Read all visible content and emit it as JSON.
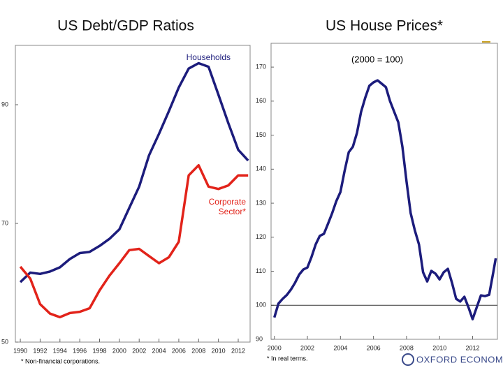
{
  "chart_data": [
    {
      "type": "line",
      "title": "US Debt/GDP Ratios",
      "x": [
        1990,
        1991,
        1992,
        1993,
        1994,
        1995,
        1996,
        1997,
        1998,
        1999,
        2000,
        2001,
        2002,
        2003,
        2004,
        2005,
        2006,
        2007,
        2008,
        2009,
        2010,
        2011,
        2012,
        2013
      ],
      "series": [
        {
          "name": "Households",
          "color": "#1c1c7c",
          "values": [
            60.1,
            61.7,
            61.5,
            61.9,
            62.6,
            64,
            65,
            65.2,
            66.2,
            67.4,
            69,
            72.6,
            76.2,
            81.5,
            85.1,
            88.9,
            92.9,
            96.1,
            97,
            96.4,
            91.7,
            86.9,
            82.4,
            80.6
          ]
        },
        {
          "name": "Corporate Sector*",
          "color": "#e2231a",
          "values": [
            62.7,
            60.7,
            56.4,
            54.8,
            54.2,
            54.9,
            55.1,
            55.7,
            58.7,
            61.2,
            63.3,
            65.5,
            65.7,
            64.5,
            63.3,
            64.3,
            66.9,
            78.1,
            79.8,
            76.2,
            75.8,
            76.4,
            78.1,
            78.1
          ]
        }
      ],
      "xlim": [
        1989.5,
        2013.2
      ],
      "xticks": [
        1990,
        1992,
        1994,
        1996,
        1998,
        2000,
        2002,
        2004,
        2006,
        2008,
        2010,
        2012
      ],
      "ylim": [
        50,
        100
      ],
      "yticks": [
        50,
        70,
        90
      ],
      "note": "* Non-financial corporations."
    },
    {
      "type": "line",
      "title": "US House Prices*",
      "subtitle": "(2000 = 100)",
      "x": [
        2000,
        2000.25,
        2000.5,
        2000.75,
        2001,
        2001.25,
        2001.5,
        2001.75,
        2002,
        2002.25,
        2002.5,
        2002.75,
        2003,
        2003.25,
        2003.5,
        2003.75,
        2004,
        2004.25,
        2004.5,
        2004.75,
        2005,
        2005.25,
        2005.5,
        2005.75,
        2006,
        2006.25,
        2006.5,
        2006.75,
        2007,
        2007.25,
        2007.5,
        2007.75,
        2008,
        2008.25,
        2008.5,
        2008.75,
        2009,
        2009.25,
        2009.5,
        2009.75,
        2010,
        2010.25,
        2010.5,
        2010.75,
        2011,
        2011.25,
        2011.5,
        2011.75,
        2012,
        2012.25,
        2012.5,
        2012.75,
        2013,
        2013.25,
        2013.4
      ],
      "series": [
        {
          "color": "#1c1c7c",
          "values": [
            96.4,
            100.5,
            101.9,
            103,
            104.6,
            106.6,
            109,
            110.5,
            111.1,
            114.2,
            117.9,
            120.4,
            121,
            124,
            127.1,
            130.6,
            133.3,
            139.4,
            145,
            146.6,
            150.7,
            156.9,
            161,
            164.5,
            165.5,
            166.1,
            165.1,
            164.1,
            160,
            156.9,
            153.8,
            146.6,
            136.4,
            127.1,
            122,
            117.9,
            109.7,
            107,
            110.1,
            109.3,
            107.6,
            109.7,
            110.7,
            106.6,
            101.9,
            101.1,
            102.5,
            99.4,
            95.9,
            99.4,
            102.9,
            102.7,
            103.1,
            109.7,
            113.8
          ]
        }
      ],
      "xlim": [
        1999.8,
        2013.5
      ],
      "xticks": [
        2000,
        2002,
        2004,
        2006,
        2008,
        2010,
        2012
      ],
      "ylim": [
        90,
        177
      ],
      "yticks": [
        90,
        100,
        110,
        120,
        130,
        140,
        150,
        160,
        170
      ],
      "hline": 100,
      "note": "* In real terms."
    }
  ],
  "logo": "OXFORD ECONOMICS"
}
